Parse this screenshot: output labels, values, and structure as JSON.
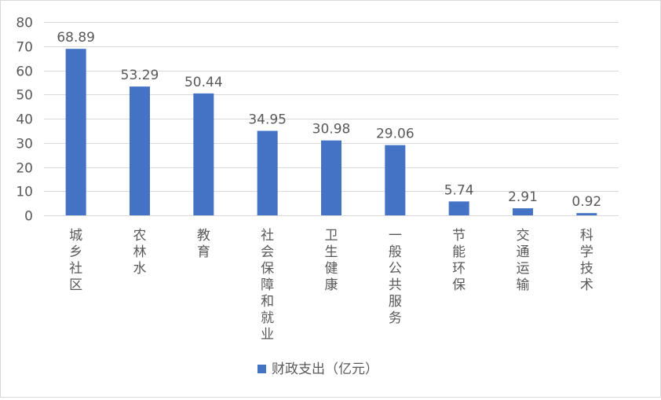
{
  "chart_data": {
    "type": "bar",
    "title": "",
    "xlabel": "",
    "ylabel": "",
    "ylim": [
      0,
      80
    ],
    "yticks": [
      0,
      10,
      20,
      30,
      40,
      50,
      60,
      70,
      80
    ],
    "grid": true,
    "legend_position": "bottom",
    "bar_color": "#4472C4",
    "grid_color": "#d9d9d9",
    "text_color": "#595959",
    "categories": [
      "城乡社区",
      "农林水",
      "教育",
      "社会保障和就业",
      "卫生健康",
      "一般公共服务",
      "节能环保",
      "交通运输",
      "科学技术"
    ],
    "series": [
      {
        "name": "财政支出（亿元）",
        "values": [
          68.89,
          53.29,
          50.44,
          34.95,
          30.98,
          29.06,
          5.74,
          2.91,
          0.92
        ],
        "labels": [
          "68.89",
          "53.29",
          "50.44",
          "34.95",
          "30.98",
          "29.06",
          "5.74",
          "2.91",
          "0.92"
        ]
      }
    ]
  }
}
